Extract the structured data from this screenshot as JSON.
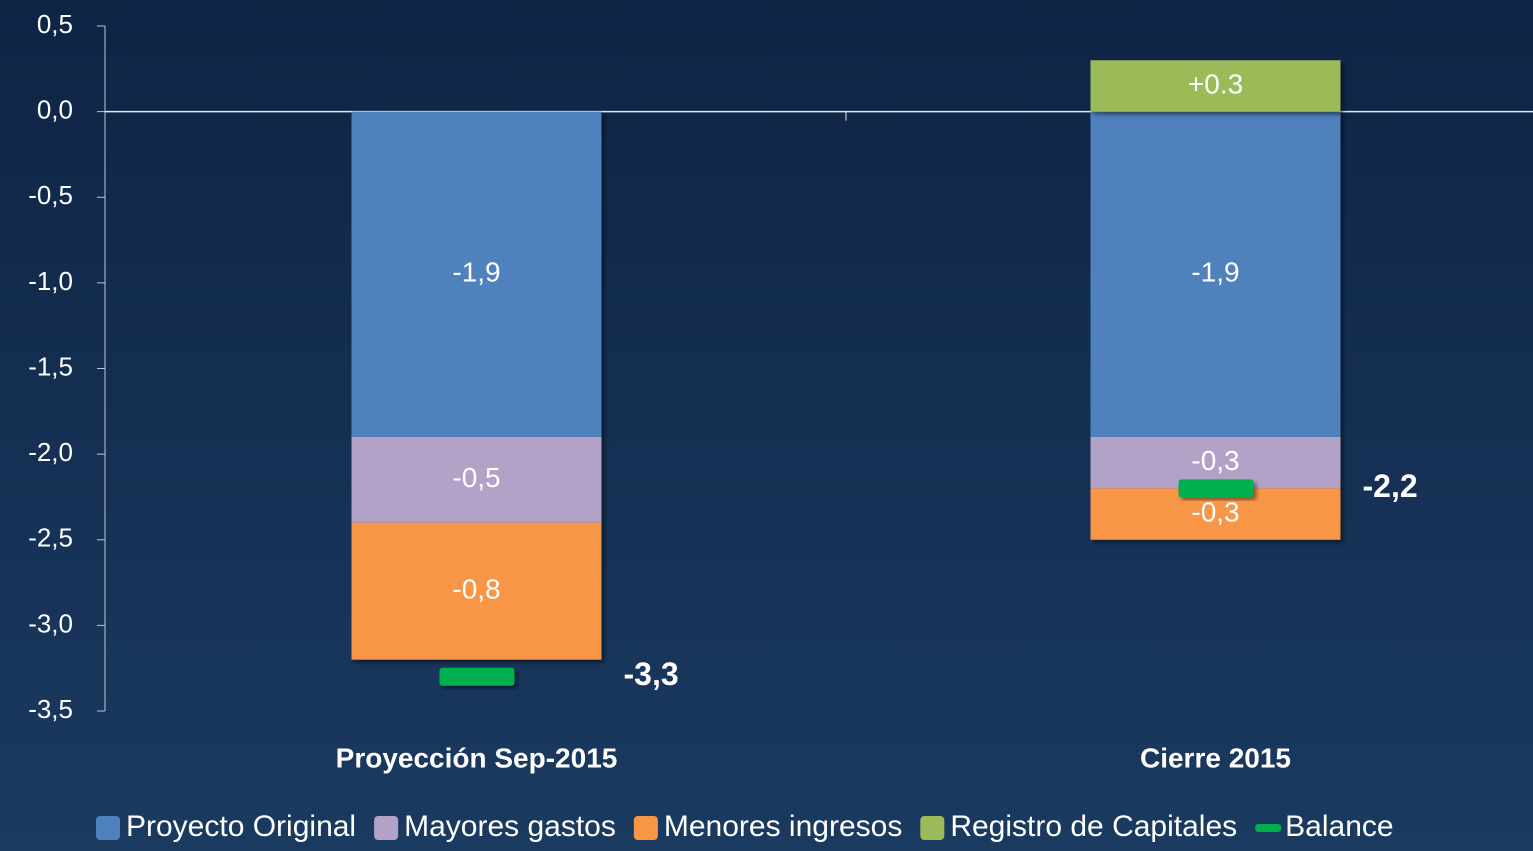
{
  "chart_data": {
    "type": "bar",
    "stacked": true,
    "categories": [
      "Proyección Sep-2015",
      "Cierre 2015"
    ],
    "series": [
      {
        "name": "Proyecto Original",
        "color": "#4f81bd",
        "values": [
          -1.9,
          -1.9
        ],
        "value_labels": [
          "-1,9",
          "-1,9"
        ]
      },
      {
        "name": "Mayores gastos",
        "color": "#b3a2c7",
        "values": [
          -0.5,
          -0.3
        ],
        "value_labels": [
          "-0,5",
          "-0,3"
        ]
      },
      {
        "name": "Menores ingresos",
        "color": "#f79646",
        "values": [
          -0.8,
          -0.3
        ],
        "value_labels": [
          "-0,8",
          "-0,3"
        ]
      },
      {
        "name": "Registro de Capitales",
        "color": "#9bbb59",
        "values": [
          null,
          0.3
        ],
        "value_labels": [
          null,
          "+0.3"
        ]
      },
      {
        "name": "Balance",
        "color": "#00b050",
        "type": "marker",
        "values": [
          -3.3,
          -2.2
        ],
        "value_labels": [
          "-3,3",
          "-2,2"
        ]
      }
    ],
    "ylim": [
      -3.5,
      0.5
    ],
    "yticks": [
      {
        "value": 0.5,
        "label": "0,5"
      },
      {
        "value": 0.0,
        "label": "0,0"
      },
      {
        "value": -0.5,
        "label": "-0,5"
      },
      {
        "value": -1.0,
        "label": "-1,0"
      },
      {
        "value": -1.5,
        "label": "-1,5"
      },
      {
        "value": -2.0,
        "label": "-2,0"
      },
      {
        "value": -2.5,
        "label": "-2,5"
      },
      {
        "value": -3.0,
        "label": "-3,0"
      },
      {
        "value": -3.5,
        "label": "-3,5"
      }
    ],
    "legend": "bottom"
  }
}
